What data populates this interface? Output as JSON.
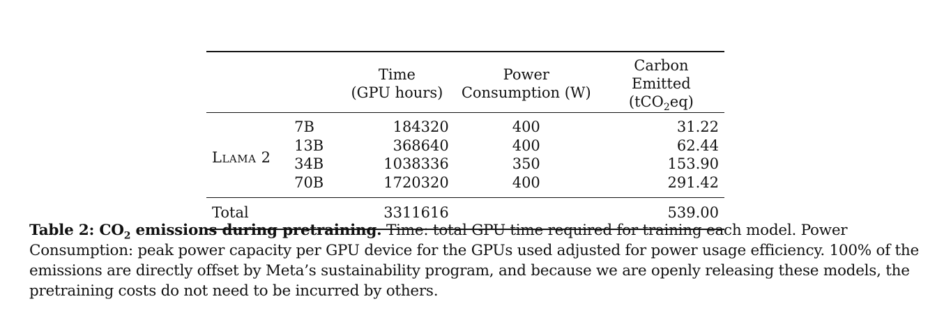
{
  "table": {
    "headers": {
      "time_line1": "Time",
      "time_line2": "(GPU hours)",
      "power_line1": "Power",
      "power_line2": "Consumption (W)",
      "carbon_line1": "Carbon Emitted",
      "carbon_line2_prefix": "(tCO",
      "carbon_line2_sub": "2",
      "carbon_line2_suffix": "eq)"
    },
    "model_name": "Llama 2",
    "rows": [
      {
        "size": "7B",
        "time": "184320",
        "power": "400",
        "carbon": "31.22"
      },
      {
        "size": "13B",
        "time": "368640",
        "power": "400",
        "carbon": "62.44"
      },
      {
        "size": "34B",
        "time": "1038336",
        "power": "350",
        "carbon": "153.90"
      },
      {
        "size": "70B",
        "time": "1720320",
        "power": "400",
        "carbon": "291.42"
      }
    ],
    "total": {
      "label": "Total",
      "time": "3311616",
      "power": "",
      "carbon": "539.00"
    }
  },
  "caption": {
    "label": "Table 2:",
    "title_prefix": "CO",
    "title_sub": "2",
    "title_suffix": "emissions during pretraining.",
    "text": "Time: total GPU time required for training each model. Power Consumption: peak power capacity per GPU device for the GPUs used adjusted for power usage efficiency. 100% of the emissions are directly offset by Meta’s sustainability program, and because we are openly releasing these models, the pretraining costs do not need to be incurred by others."
  }
}
